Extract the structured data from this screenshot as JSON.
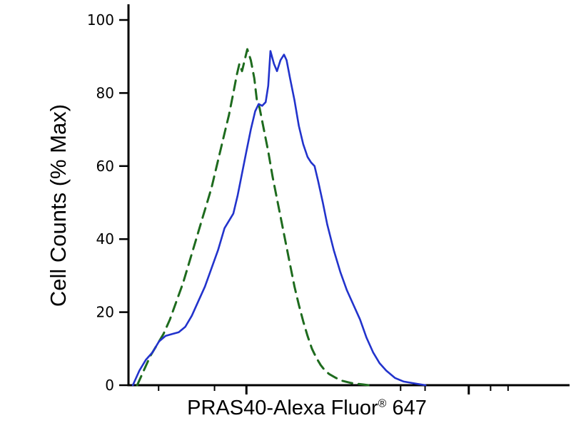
{
  "chart_data": {
    "type": "line",
    "title": "",
    "subtitle": "",
    "ylabel": "Cell Counts (% Max)",
    "xlabel_main": "PRAS40-Alexa Fluor",
    "xlabel_sup": "®",
    "xlabel_end": " 647",
    "xlim": [
      0,
      100
    ],
    "ylim": [
      0,
      100
    ],
    "x_scale_note": "log-style flow cytometry fluorescence axis, unlabeled arbitrary units",
    "grid": false,
    "legend_position": "none",
    "axis_color": "#000000",
    "y_ticks": [
      0,
      20,
      40,
      60,
      80,
      100
    ],
    "x_ticks": [
      {
        "pos": 6.9,
        "major": false
      },
      {
        "pos": 19.7,
        "major": false
      },
      {
        "pos": 27.0,
        "major": true
      },
      {
        "pos": 62.3,
        "major": false
      },
      {
        "pos": 67.9,
        "major": false
      },
      {
        "pos": 77.9,
        "major": true
      },
      {
        "pos": 82.9,
        "major": false
      },
      {
        "pos": 86.9,
        "major": false
      }
    ],
    "series": [
      {
        "id": "dashed-green",
        "name": "dashed green histogram (left curve)",
        "color": "#1e6b1e",
        "style": "dashed",
        "width": 3,
        "x": [
          2,
          3.5,
          5,
          6.5,
          8,
          9.5,
          11,
          12.5,
          14,
          15.5,
          17,
          18,
          19,
          20,
          21,
          22,
          23,
          24,
          24.8,
          25.4,
          26,
          26.6,
          27.2,
          28,
          28.8,
          29.4,
          30,
          31,
          32,
          33,
          34,
          35,
          36,
          37,
          38,
          39,
          40,
          41,
          42,
          43,
          44,
          45,
          46,
          47.5,
          49,
          51,
          53,
          55
        ],
        "y": [
          0,
          4,
          8,
          11,
          14,
          18,
          23,
          28,
          34,
          40,
          46,
          50,
          54,
          59,
          64,
          69,
          74,
          80,
          85,
          88,
          86,
          89,
          92,
          89,
          84,
          78,
          76,
          70,
          64,
          57,
          51,
          45,
          39,
          33,
          27,
          22,
          17.5,
          13.5,
          10,
          7.5,
          5.5,
          4,
          3,
          2,
          1.2,
          0.6,
          0.3,
          0
        ]
      },
      {
        "id": "solid-blue",
        "name": "solid blue histogram (right curve)",
        "color": "#2233cc",
        "style": "solid",
        "width": 2.6,
        "x": [
          1,
          2.5,
          4,
          5.5,
          7,
          8.5,
          10,
          11.5,
          13,
          14.5,
          16,
          17.5,
          19,
          20.5,
          22,
          23,
          24,
          25,
          26,
          27,
          28,
          29,
          29.8,
          30.6,
          31.4,
          32,
          32.5,
          33.3,
          34,
          34.8,
          35.6,
          36.2,
          37,
          38,
          39,
          40,
          41,
          41.8,
          42.6,
          43.4,
          44.5,
          45.5,
          47,
          48.5,
          50,
          51.5,
          53,
          54.5,
          56,
          57.5,
          59,
          61,
          63,
          66,
          68
        ],
        "y": [
          0,
          4,
          7,
          9,
          12,
          13.5,
          14,
          14.5,
          16,
          19,
          23,
          27,
          32,
          37,
          43,
          45,
          47,
          52,
          58,
          64,
          70,
          75,
          77,
          76.5,
          77.5,
          82,
          91.5,
          88,
          86,
          89,
          90.5,
          89,
          84,
          78,
          71,
          66,
          62.5,
          61,
          60,
          56,
          50,
          44,
          37,
          31,
          26,
          22,
          18,
          13,
          9,
          6,
          4,
          2,
          1,
          0.4,
          0
        ]
      }
    ]
  }
}
